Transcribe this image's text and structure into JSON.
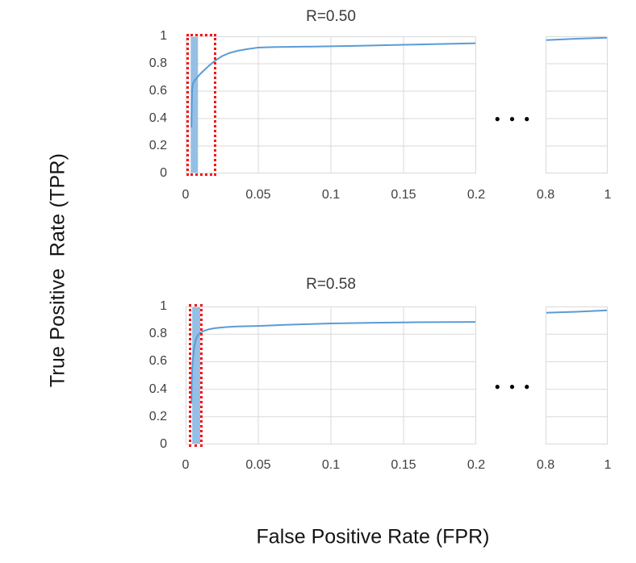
{
  "figure": {
    "ylabel": "True Positive  Rate (TPR)",
    "xlabel": "False Positive Rate (FPR)",
    "ellipsis_symbol": "●●●"
  },
  "colors": {
    "curve": "#5b9bd5",
    "band": "#8fbce4",
    "highlight": "#fb0d0d",
    "grid": "#d9d9d9",
    "tick_text": "#404040"
  },
  "chart_data": [
    {
      "type": "line",
      "title": "R=0.50",
      "xlabel": "False Positive Rate (FPR)",
      "ylabel": "True Positive Rate (TPR)",
      "legend": null,
      "grid": true,
      "main_panel": {
        "xlim": [
          0,
          0.2
        ],
        "ylim": [
          0,
          1
        ],
        "xticks": [
          "0",
          "0.05",
          "0.1",
          "0.15",
          "0.2"
        ],
        "yticks": [
          "1",
          "0.8",
          "0.6",
          "0.4",
          "0.2",
          "0"
        ],
        "roc_points": [
          [
            0.004,
            0.34
          ],
          [
            0.0042,
            0.5
          ],
          [
            0.0045,
            0.62
          ],
          [
            0.005,
            0.655
          ],
          [
            0.006,
            0.675
          ],
          [
            0.008,
            0.7
          ],
          [
            0.01,
            0.725
          ],
          [
            0.013,
            0.755
          ],
          [
            0.016,
            0.785
          ],
          [
            0.02,
            0.82
          ],
          [
            0.025,
            0.855
          ],
          [
            0.03,
            0.878
          ],
          [
            0.036,
            0.895
          ],
          [
            0.042,
            0.906
          ],
          [
            0.05,
            0.918
          ],
          [
            0.06,
            0.921
          ],
          [
            0.08,
            0.924
          ],
          [
            0.1,
            0.927
          ],
          [
            0.12,
            0.931
          ],
          [
            0.15,
            0.938
          ],
          [
            0.18,
            0.945
          ],
          [
            0.2,
            0.949
          ]
        ],
        "highlight_band_x": [
          0.0035,
          0.0085
        ],
        "highlight_rect_x": [
          0.0005,
          0.021
        ]
      },
      "mini_panel": {
        "xlim": [
          0.8,
          1
        ],
        "ylim": [
          0,
          1
        ],
        "xticks": [
          "0.8",
          "1"
        ],
        "roc_points": [
          [
            0.8,
            0.972
          ],
          [
            0.9,
            0.982
          ],
          [
            1.0,
            0.99
          ]
        ]
      }
    },
    {
      "type": "line",
      "title": "R=0.58",
      "xlabel": "False Positive Rate (FPR)",
      "ylabel": "True Positive Rate (TPR)",
      "legend": null,
      "grid": true,
      "main_panel": {
        "xlim": [
          0,
          0.2
        ],
        "ylim": [
          0,
          1
        ],
        "xticks": [
          "0",
          "0.05",
          "0.1",
          "0.15",
          "0.2"
        ],
        "yticks": [
          "1",
          "0.8",
          "0.6",
          "0.4",
          "0.2",
          "0"
        ],
        "roc_points": [
          [
            0.004,
            0.3
          ],
          [
            0.0042,
            0.45
          ],
          [
            0.0045,
            0.55
          ],
          [
            0.005,
            0.62
          ],
          [
            0.0055,
            0.67
          ],
          [
            0.006,
            0.71
          ],
          [
            0.007,
            0.76
          ],
          [
            0.008,
            0.785
          ],
          [
            0.01,
            0.81
          ],
          [
            0.013,
            0.825
          ],
          [
            0.016,
            0.835
          ],
          [
            0.02,
            0.843
          ],
          [
            0.027,
            0.85
          ],
          [
            0.035,
            0.855
          ],
          [
            0.05,
            0.859
          ],
          [
            0.07,
            0.868
          ],
          [
            0.1,
            0.877
          ],
          [
            0.13,
            0.882
          ],
          [
            0.16,
            0.886
          ],
          [
            0.2,
            0.888
          ]
        ],
        "highlight_band_x": [
          0.0045,
          0.01
        ],
        "highlight_rect_x": [
          0.0022,
          0.0117
        ]
      },
      "mini_panel": {
        "xlim": [
          0.8,
          1
        ],
        "ylim": [
          0,
          1
        ],
        "xticks": [
          "0.8",
          "1"
        ],
        "roc_points": [
          [
            0.8,
            0.955
          ],
          [
            0.9,
            0.962
          ],
          [
            1.0,
            0.972
          ]
        ]
      }
    }
  ]
}
